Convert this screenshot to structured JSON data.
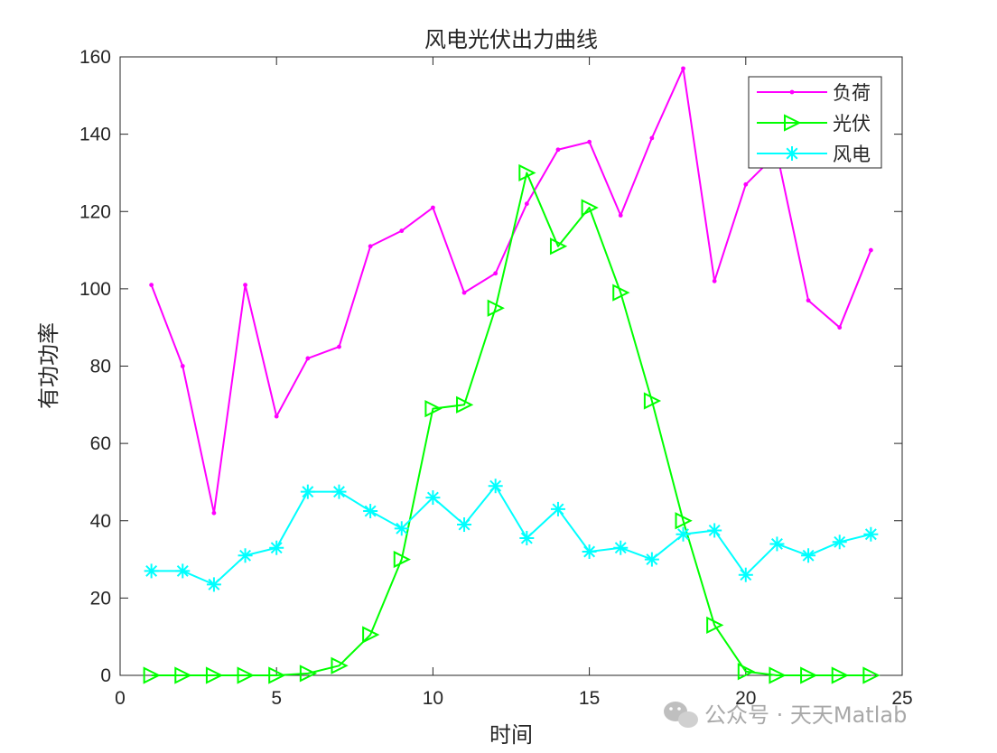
{
  "chart_data": {
    "type": "line",
    "title": "风电光伏出力曲线",
    "xlabel": "时间",
    "ylabel": "有功功率",
    "xlim": [
      0,
      25
    ],
    "ylim": [
      0,
      160
    ],
    "xticks": [
      0,
      5,
      10,
      15,
      20,
      25
    ],
    "yticks": [
      0,
      20,
      40,
      60,
      80,
      100,
      120,
      140,
      160
    ],
    "grid": false,
    "legend_position": "top-right",
    "x": [
      1,
      2,
      3,
      4,
      5,
      6,
      7,
      8,
      9,
      10,
      11,
      12,
      13,
      14,
      15,
      16,
      17,
      18,
      19,
      20,
      21,
      22,
      23,
      24
    ],
    "series": [
      {
        "name": "负荷",
        "color": "#ff00ff",
        "marker": "point",
        "values": [
          101,
          80,
          42,
          101,
          67,
          82,
          85,
          111,
          115,
          121,
          99,
          104,
          122,
          136,
          138,
          119,
          139,
          157,
          102,
          127,
          135,
          97,
          90,
          110
        ]
      },
      {
        "name": "光伏",
        "color": "#00ff00",
        "marker": "triangle-right",
        "values": [
          0,
          0,
          0,
          0,
          0,
          0.5,
          2.5,
          10.5,
          30,
          69,
          70,
          95,
          130,
          111,
          121,
          99,
          71,
          40,
          13,
          1,
          0,
          0,
          0,
          0
        ]
      },
      {
        "name": "风电",
        "color": "#00ffff",
        "marker": "asterisk",
        "values": [
          27,
          27,
          23.5,
          31,
          33,
          47.5,
          47.5,
          42.5,
          38,
          46,
          39,
          49,
          35.5,
          43,
          32,
          33,
          30,
          36.5,
          37.5,
          26,
          34,
          31,
          34.5,
          36.5
        ]
      }
    ]
  },
  "watermark": {
    "icon": "wechat-icon",
    "text": "公众号 · 天天Matlab"
  }
}
